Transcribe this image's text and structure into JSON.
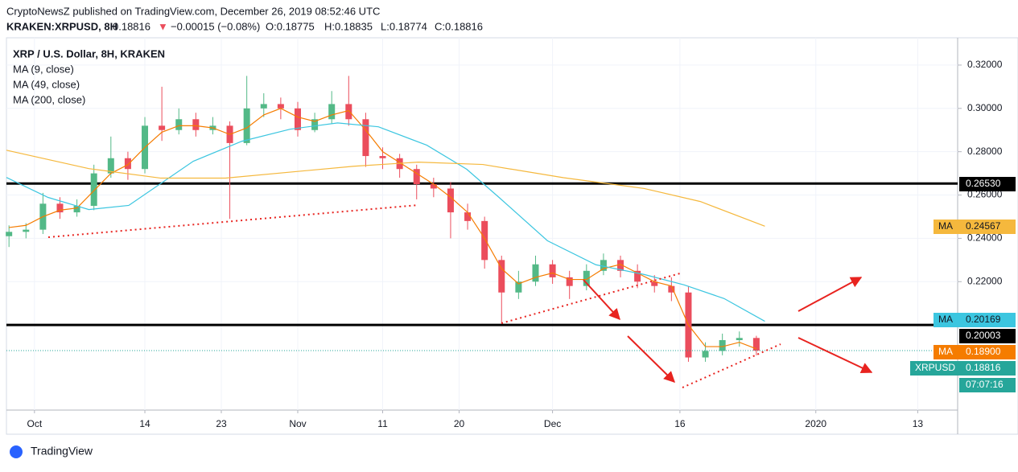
{
  "header": {
    "published": "CryptoNewsZ published on TradingView.com, December 26, 2019 08:52:46 UTC",
    "symbol": "KRAKEN:XRPUSD, 8H",
    "last": "0.18816",
    "arrow": "▼",
    "change": "−0.00015 (−0.08%)",
    "open": "O:0.18775",
    "high": "H:0.18835",
    "low": "L:0.18774",
    "close": "C:0.18816"
  },
  "footer": {
    "brand": "TradingView"
  },
  "chart_data": {
    "type": "candlestick",
    "title": "XRP / U.S. Dollar, 8H, KRAKEN",
    "xlim": [
      -3.3,
      108.7
    ],
    "ylim": [
      0.1607,
      0.3326
    ],
    "xticks": [
      {
        "value": 0,
        "label": "Oct"
      },
      {
        "value": 13,
        "label": "14"
      },
      {
        "value": 22,
        "label": "23"
      },
      {
        "value": 31,
        "label": "Nov"
      },
      {
        "value": 41,
        "label": "11"
      },
      {
        "value": 50,
        "label": "20"
      },
      {
        "value": 61,
        "label": "Dec"
      },
      {
        "value": 76,
        "label": "16"
      },
      {
        "value": 92,
        "label": "2020"
      },
      {
        "value": 104,
        "label": "13"
      }
    ],
    "yticks": [
      {
        "value": 0.22,
        "label": "0.22000"
      },
      {
        "value": 0.24,
        "label": "0.24000"
      },
      {
        "value": 0.26,
        "label": "0.26000"
      },
      {
        "value": 0.28,
        "label": "0.28000"
      },
      {
        "value": 0.3,
        "label": "0.30000"
      },
      {
        "value": 0.32,
        "label": "0.32000"
      }
    ],
    "grid": true,
    "up_color": "#53b987",
    "down_color": "#eb4d5c",
    "candles": {
      "x": [
        -3,
        -1,
        1,
        3,
        5,
        7,
        9,
        11,
        13,
        15,
        17,
        19,
        21,
        23,
        25,
        27,
        29,
        31,
        33,
        35,
        37,
        39,
        41,
        43,
        45,
        47,
        49,
        51,
        53,
        55,
        57,
        59,
        61,
        63,
        65,
        67,
        69,
        71,
        73,
        75,
        77,
        79,
        81,
        83,
        85
      ],
      "open": [
        0.241,
        0.243,
        0.244,
        0.256,
        0.252,
        0.255,
        0.27,
        0.277,
        0.272,
        0.292,
        0.29,
        0.295,
        0.29,
        0.292,
        0.284,
        0.3,
        0.302,
        0.3,
        0.29,
        0.295,
        0.302,
        0.295,
        0.278,
        0.277,
        0.272,
        0.265,
        0.263,
        0.252,
        0.248,
        0.23,
        0.215,
        0.22,
        0.228,
        0.222,
        0.218,
        0.225,
        0.23,
        0.225,
        0.22,
        0.218,
        0.215,
        0.185,
        0.188,
        0.193,
        0.194
      ],
      "high": [
        0.246,
        0.247,
        0.261,
        0.259,
        0.258,
        0.274,
        0.287,
        0.28,
        0.296,
        0.31,
        0.3,
        0.298,
        0.296,
        0.294,
        0.315,
        0.307,
        0.305,
        0.303,
        0.298,
        0.308,
        0.315,
        0.298,
        0.282,
        0.279,
        0.274,
        0.268,
        0.266,
        0.256,
        0.25,
        0.232,
        0.225,
        0.232,
        0.23,
        0.225,
        0.228,
        0.233,
        0.232,
        0.228,
        0.223,
        0.222,
        0.218,
        0.192,
        0.196,
        0.197,
        0.195
      ],
      "low": [
        0.236,
        0.24,
        0.242,
        0.249,
        0.25,
        0.253,
        0.268,
        0.267,
        0.27,
        0.285,
        0.288,
        0.287,
        0.288,
        0.249,
        0.283,
        0.296,
        0.295,
        0.287,
        0.289,
        0.293,
        0.292,
        0.273,
        0.272,
        0.268,
        0.258,
        0.259,
        0.24,
        0.244,
        0.226,
        0.201,
        0.212,
        0.218,
        0.219,
        0.212,
        0.216,
        0.223,
        0.222,
        0.217,
        0.215,
        0.211,
        0.183,
        0.183,
        0.186,
        0.19,
        0.186
      ],
      "close": [
        0.243,
        0.244,
        0.256,
        0.252,
        0.255,
        0.27,
        0.277,
        0.272,
        0.292,
        0.29,
        0.295,
        0.29,
        0.292,
        0.284,
        0.3,
        0.302,
        0.3,
        0.29,
        0.295,
        0.302,
        0.295,
        0.278,
        0.277,
        0.272,
        0.265,
        0.263,
        0.252,
        0.248,
        0.23,
        0.215,
        0.22,
        0.228,
        0.222,
        0.218,
        0.225,
        0.23,
        0.225,
        0.22,
        0.218,
        0.215,
        0.185,
        0.188,
        0.193,
        0.194,
        0.18816
      ]
    },
    "ma_tag": "MA",
    "series": [
      {
        "name": "MA (9, close)",
        "color": "#f57c00",
        "x": [
          -3,
          -1,
          1,
          3,
          5,
          7,
          9,
          11,
          13,
          15,
          17,
          19,
          21,
          23,
          25,
          27,
          29,
          31,
          33,
          35,
          37,
          39,
          41,
          43,
          45,
          47,
          49,
          51,
          53,
          55,
          57,
          59,
          61,
          63,
          65,
          67,
          69,
          71,
          73,
          75,
          77,
          79,
          81,
          83,
          85
        ],
        "values": [
          0.245,
          0.246,
          0.25,
          0.253,
          0.254,
          0.262,
          0.27,
          0.274,
          0.282,
          0.289,
          0.292,
          0.292,
          0.291,
          0.288,
          0.291,
          0.297,
          0.3,
          0.296,
          0.294,
          0.297,
          0.299,
          0.29,
          0.28,
          0.275,
          0.27,
          0.265,
          0.259,
          0.252,
          0.24,
          0.226,
          0.219,
          0.222,
          0.224,
          0.221,
          0.221,
          0.226,
          0.228,
          0.224,
          0.22,
          0.218,
          0.2,
          0.19,
          0.19,
          0.192,
          0.189
        ],
        "last": {
          "value": 0.189,
          "label": "0.18900"
        }
      },
      {
        "name": "MA (49, close)",
        "color": "#3cc6e0",
        "x": [
          -3.3,
          1.6,
          6.4,
          11.1,
          18.7,
          24.4,
          30.1,
          35.7,
          40.5,
          46.2,
          50.9,
          54.7,
          60.4,
          66.1,
          71.8,
          76.5,
          81.2,
          86
        ],
        "values": [
          0.2681,
          0.2589,
          0.2533,
          0.2552,
          0.2756,
          0.2848,
          0.2904,
          0.2933,
          0.2915,
          0.283,
          0.2719,
          0.2589,
          0.2389,
          0.2278,
          0.2233,
          0.2185,
          0.2122,
          0.2017
        ],
        "last": {
          "value": 0.20169,
          "label": "0.20169"
        }
      },
      {
        "name": "MA (200, close)",
        "color": "#f5b83d",
        "x": [
          -3.3,
          6.4,
          14.9,
          22.5,
          37.6,
          45.2,
          52.8,
          62.3,
          71.8,
          78.4,
          86
        ],
        "values": [
          0.2807,
          0.2722,
          0.2678,
          0.2678,
          0.2733,
          0.2752,
          0.2741,
          0.268,
          0.263,
          0.257,
          0.2456
        ],
        "last": {
          "value": 0.24567,
          "label": "0.24567"
        }
      }
    ],
    "hlines": [
      {
        "value": 0.2653,
        "label": "0.26530"
      },
      {
        "value": 0.20003,
        "label": "0.20003"
      }
    ],
    "last_price": {
      "symbol": "XRPUSD",
      "value": 0.18816,
      "label": "0.18816",
      "countdown": "07:07:16"
    }
  }
}
